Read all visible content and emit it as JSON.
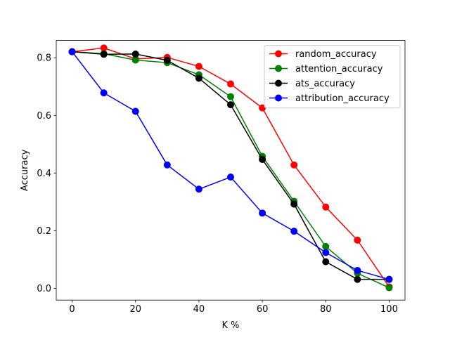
{
  "chart_data": {
    "type": "line",
    "title": "",
    "xlabel": "K %",
    "ylabel": "Accuracy",
    "x": [
      0,
      10,
      20,
      30,
      40,
      50,
      60,
      70,
      80,
      90,
      100
    ],
    "xlim": [
      -5,
      105
    ],
    "ylim": [
      -0.041,
      0.86
    ],
    "xticks": [
      0,
      20,
      40,
      60,
      80,
      100
    ],
    "xtick_labels": [
      "0",
      "20",
      "40",
      "60",
      "80",
      "100"
    ],
    "yticks": [
      0.0,
      0.2,
      0.4,
      0.6,
      0.8
    ],
    "ytick_labels": [
      "0.0",
      "0.2",
      "0.4",
      "0.6",
      "0.8"
    ],
    "grid": false,
    "legend_position": "top-right",
    "series": [
      {
        "name": "random_accuracy",
        "color": "#ff0000",
        "marker": "circle",
        "values": [
          0.821,
          0.834,
          0.796,
          0.801,
          0.77,
          0.709,
          0.626,
          0.428,
          0.282,
          0.167,
          0.005
        ]
      },
      {
        "name": "attention_accuracy",
        "color": "#008000",
        "marker": "circle",
        "values": [
          0.821,
          0.814,
          0.792,
          0.783,
          0.741,
          0.665,
          0.458,
          0.302,
          0.145,
          0.052,
          0.002
        ]
      },
      {
        "name": "ats_accuracy",
        "color": "#000000",
        "marker": "circle",
        "values": [
          0.821,
          0.812,
          0.813,
          0.791,
          0.729,
          0.637,
          0.447,
          0.292,
          0.092,
          0.031,
          0.031
        ]
      },
      {
        "name": "attribution_accuracy",
        "color": "#0000ff",
        "marker": "circle",
        "values": [
          0.821,
          0.678,
          0.614,
          0.428,
          0.344,
          0.386,
          0.261,
          0.198,
          0.124,
          0.062,
          0.031
        ]
      }
    ]
  }
}
